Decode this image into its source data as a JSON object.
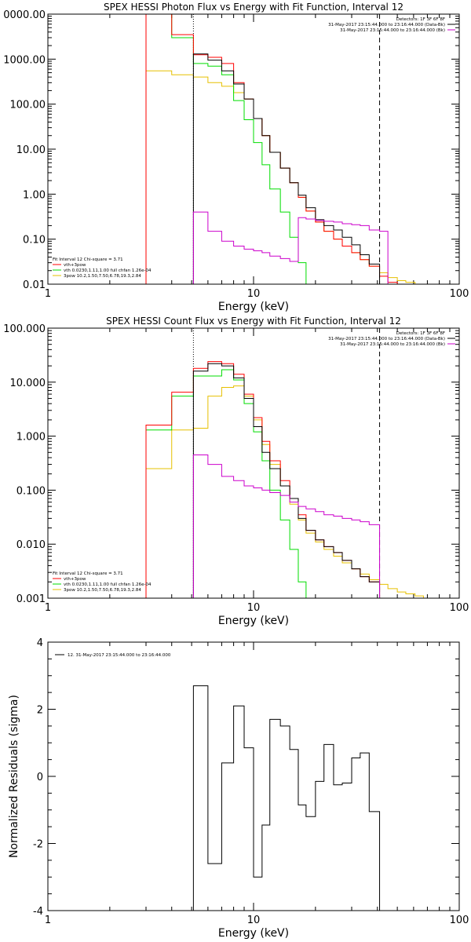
{
  "chart_data": [
    {
      "type": "line",
      "title": "SPEX HESSI Photon Flux vs Energy with Fit Function, Interval 12",
      "xlabel": "Energy (keV)",
      "ylabel": "",
      "xscale": "log",
      "yscale": "log",
      "xlim": [
        1,
        100
      ],
      "ylim": [
        0.01,
        10000
      ],
      "x_tick_labels": [
        "1",
        "10",
        "100"
      ],
      "y_tick_labels": [
        "0.01",
        "0.10",
        "1.00",
        "10.00",
        "100.00",
        "1000.00",
        "0000.00"
      ],
      "vlines": [
        5.1,
        41
      ],
      "legend_top_right": [
        "Detectors: 1F 3F 6F 8F",
        "31-May-2017 23:15:44.000 to 23:16:44.000 (Data-Bk)",
        "31-May-2017 23:15:44.000 to 23:16:44.000 (Bk)"
      ],
      "legend_bottom_left": [
        "Fit Interval 12   Chi-square = 3.71",
        "vth+3pow",
        "vth 0.0230,1.11,1.00  full chfan 1.26e-04",
        "3pow 10.2,1.50,7.50,6.78,19.3,2.84"
      ],
      "edges": [
        3,
        4,
        5.1,
        6,
        7,
        8,
        9,
        10,
        11,
        12,
        13.5,
        15,
        16.5,
        18,
        20,
        22,
        24.5,
        27,
        30,
        33,
        36.5,
        41,
        45,
        50,
        55,
        61,
        67,
        74,
        80
      ],
      "series": [
        {
          "name": "Data-Bk",
          "color": "#000000",
          "start_index": 2,
          "values": [
            1300,
            950,
            550,
            280,
            130,
            48,
            20,
            8.5,
            3.8,
            1.8,
            0.95,
            0.5,
            0.27,
            0.2,
            0.16,
            0.11,
            0.075,
            0.045,
            0.028,
            0.01
          ]
        },
        {
          "name": "Bk",
          "color": "#cc00cc",
          "start_index": 2,
          "values": [
            0.4,
            0.15,
            0.09,
            0.07,
            0.06,
            0.055,
            0.05,
            0.042,
            0.037,
            0.032,
            0.3,
            0.28,
            0.26,
            0.25,
            0.24,
            0.22,
            0.21,
            0.2,
            0.16,
            0.15
          ]
        },
        {
          "name": "vth+3pow",
          "color": "#ff0000",
          "start_index": 0,
          "values": [
            10000,
            3500,
            1250,
            1100,
            800,
            300,
            130,
            48,
            20,
            8.5,
            3.8,
            1.8,
            0.85,
            0.42,
            0.24,
            0.15,
            0.1,
            0.07,
            0.05,
            0.035,
            0.025,
            0.015,
            0.011
          ]
        },
        {
          "name": "vth",
          "color": "#00dd00",
          "start_index": 0,
          "values": [
            10000,
            3000,
            800,
            700,
            450,
            120,
            45,
            14,
            4.5,
            1.3,
            0.4,
            0.11,
            0.03,
            0.01
          ]
        },
        {
          "name": "3pow",
          "color": "#e6c000",
          "start_index": 0,
          "values": [
            550,
            450,
            400,
            300,
            250,
            180,
            130,
            48,
            20,
            8.5,
            3.8,
            1.8,
            0.85,
            0.42,
            0.24,
            0.15,
            0.1,
            0.07,
            0.05,
            0.035,
            0.025,
            0.018,
            0.014,
            0.012,
            0.011,
            0.01
          ]
        }
      ]
    },
    {
      "type": "line",
      "title": "SPEX HESSI Count Flux vs Energy with Fit Function, Interval 12",
      "xlabel": "Energy (keV)",
      "ylabel": "",
      "xscale": "log",
      "yscale": "log",
      "xlim": [
        1,
        100
      ],
      "ylim": [
        0.001,
        100
      ],
      "x_tick_labels": [
        "1",
        "10",
        "100"
      ],
      "y_tick_labels": [
        "0.001",
        "0.010",
        "0.100",
        "1.000",
        "10.000",
        "100.000"
      ],
      "vlines": [
        5.1,
        41
      ],
      "legend_top_right": [
        "Detectors: 1F 3F 6F 8F",
        "31-May-2017 23:15:44.000 to 23:16:44.000 (Data-Bk)",
        "31-May-2017 23:15:44.000 to 23:16:44.000 (Bk)"
      ],
      "legend_bottom_left": [
        "Fit Interval 12   Chi-square = 3.71",
        "vth+3pow",
        "vth 0.0230,1.11,1.00  full chfan 1.26e-04",
        "3pow 10.2,1.50,7.50,6.78,19.3,2.84"
      ],
      "edges": [
        3,
        4,
        5.1,
        6,
        7,
        8,
        9,
        10,
        11,
        12,
        13.5,
        15,
        16.5,
        18,
        20,
        22,
        24.5,
        27,
        30,
        33,
        36.5,
        41,
        45,
        50,
        55,
        61,
        67,
        74,
        80
      ],
      "series": [
        {
          "name": "Data-Bk",
          "color": "#000000",
          "start_index": 2,
          "values": [
            16,
            22,
            20,
            12,
            5,
            1.5,
            0.5,
            0.25,
            0.12,
            0.07,
            0.03,
            0.018,
            0.012,
            0.009,
            0.007,
            0.005,
            0.0035,
            0.0025,
            0.002
          ]
        },
        {
          "name": "Bk",
          "color": "#cc00cc",
          "start_index": 2,
          "values": [
            0.45,
            0.3,
            0.18,
            0.15,
            0.12,
            0.11,
            0.1,
            0.09,
            0.08,
            0.06,
            0.05,
            0.045,
            0.04,
            0.035,
            0.033,
            0.03,
            0.028,
            0.026,
            0.023
          ]
        },
        {
          "name": "vth+3pow",
          "color": "#ff0000",
          "start_index": 0,
          "values": [
            1.6,
            6.5,
            18,
            24,
            22,
            14,
            6,
            2.2,
            0.8,
            0.35,
            0.15,
            0.07,
            0.035,
            0.018,
            0.012,
            0.009,
            0.007,
            0.005,
            0.0035,
            0.0025,
            0.002
          ]
        },
        {
          "name": "vth",
          "color": "#00dd00",
          "start_index": 0,
          "values": [
            1.3,
            5.5,
            13,
            13,
            17,
            11,
            4,
            1.2,
            0.35,
            0.1,
            0.028,
            0.008,
            0.002,
            0.001
          ]
        },
        {
          "name": "3pow",
          "color": "#e6c000",
          "start_index": 0,
          "values": [
            0.25,
            1.3,
            1.4,
            5.5,
            8,
            8.5,
            5.5,
            2,
            0.7,
            0.3,
            0.12,
            0.055,
            0.028,
            0.016,
            0.011,
            0.008,
            0.006,
            0.0045,
            0.0035,
            0.0028,
            0.0022,
            0.0018,
            0.0015,
            0.0013,
            0.0012,
            0.0011
          ]
        }
      ]
    },
    {
      "type": "line",
      "title": "",
      "xlabel": "Energy (keV)",
      "ylabel": "Normalized Residuals (sigma)",
      "xscale": "log",
      "yscale": "linear",
      "xlim": [
        1,
        100
      ],
      "ylim": [
        -4,
        4
      ],
      "x_tick_labels": [
        "1",
        "10",
        "100"
      ],
      "y_tick_labels": [
        "-4",
        "-2",
        "0",
        "2",
        "4"
      ],
      "legend": [
        "12. 31-May-2017 23:15:44.000 to 23:16:44.000"
      ],
      "edges": [
        5.1,
        6,
        7,
        8,
        9,
        10,
        11,
        12,
        13.5,
        15,
        16.5,
        18,
        20,
        22,
        24.5,
        27,
        30,
        33,
        36.5,
        41
      ],
      "series": [
        {
          "name": "12. 31-May-2017 23:15:44.000 to 23:16:44.000",
          "color": "#000000",
          "values": [
            2.7,
            -2.6,
            0.4,
            2.1,
            0.85,
            -3.0,
            -1.45,
            1.7,
            1.5,
            0.8,
            -0.85,
            -1.2,
            -0.15,
            0.95,
            -0.25,
            -0.2,
            0.55,
            0.7,
            -1.05
          ]
        }
      ]
    }
  ]
}
